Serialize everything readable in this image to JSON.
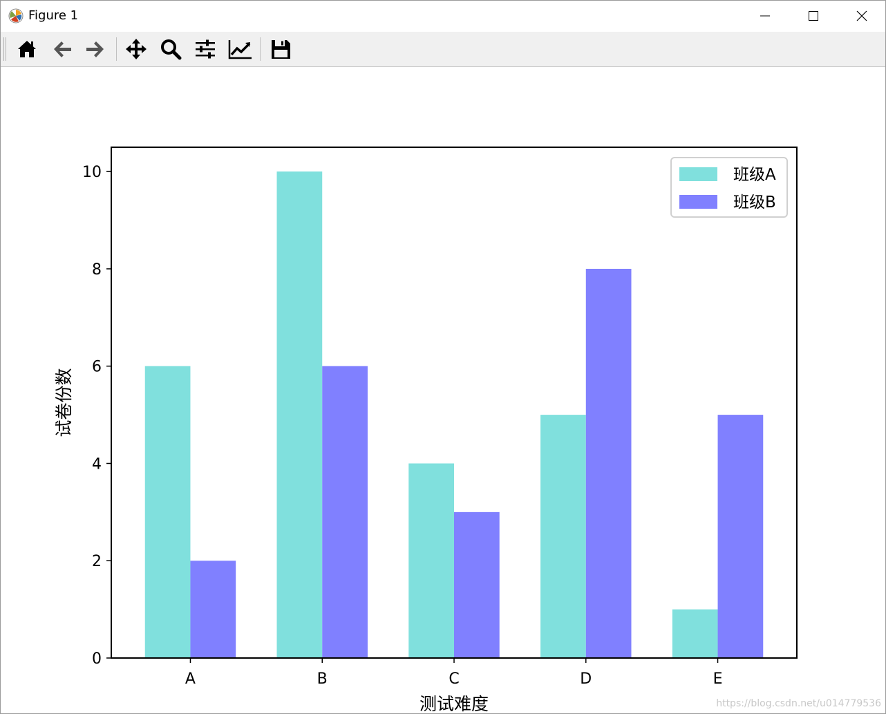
{
  "window": {
    "title": "Figure 1",
    "minimize_icon": "minimize-icon",
    "maximize_icon": "maximize-icon",
    "close_icon": "close-icon"
  },
  "toolbar": {
    "tools": [
      {
        "name": "home",
        "icon": "home-icon"
      },
      {
        "name": "back",
        "icon": "arrow-left-icon"
      },
      {
        "name": "forward",
        "icon": "arrow-right-icon"
      },
      {
        "name": "pan",
        "icon": "move-icon"
      },
      {
        "name": "zoom",
        "icon": "zoom-icon"
      },
      {
        "name": "subplots",
        "icon": "sliders-icon"
      },
      {
        "name": "edit-axis",
        "icon": "line-chart-icon"
      },
      {
        "name": "save",
        "icon": "save-icon"
      }
    ]
  },
  "chart_data": {
    "type": "bar",
    "categories": [
      "A",
      "B",
      "C",
      "D",
      "E"
    ],
    "series": [
      {
        "name": "班级A",
        "values": [
          6,
          10,
          4,
          5,
          1
        ],
        "color": "#80e0dd"
      },
      {
        "name": "班级B",
        "values": [
          2,
          6,
          3,
          8,
          5
        ],
        "color": "#8080ff"
      }
    ],
    "title": "",
    "xlabel": "测试难度",
    "ylabel": "试卷份数",
    "ylim": [
      0,
      10.5
    ],
    "yticks": [
      0,
      2,
      4,
      6,
      8,
      10
    ],
    "grid": false,
    "legend": "top-right"
  },
  "watermark": "https://blog.csdn.net/u014779536"
}
